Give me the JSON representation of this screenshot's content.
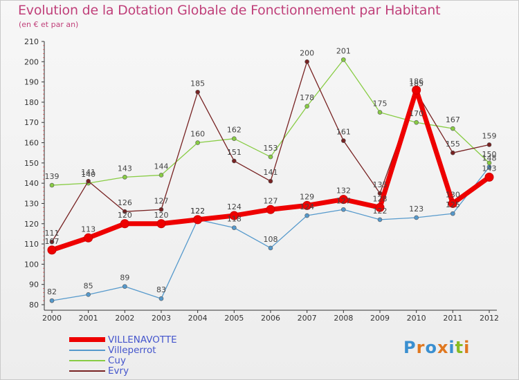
{
  "title": "Evolution de la Dotation Globale de Fonctionnement par Habitant",
  "subtitle": "(en € et par an)",
  "logo": "Proxiti",
  "chart_data": {
    "type": "line",
    "title": "Evolution de la Dotation Globale de Fonctionnement par Habitant",
    "subtitle": "(en € et par an)",
    "xlabel": "",
    "ylabel": "",
    "categories": [
      "2000",
      "2001",
      "2002",
      "2003",
      "2004",
      "2005",
      "2006",
      "2007",
      "2008",
      "2009",
      "2010",
      "2011",
      "2012"
    ],
    "ylim": [
      80,
      210
    ],
    "yticks": [
      80,
      90,
      100,
      110,
      120,
      130,
      140,
      150,
      160,
      170,
      180,
      190,
      200,
      210
    ],
    "grid": false,
    "legend_position": "bottom-left",
    "series": [
      {
        "name": "VILLENAVOTTE",
        "color": "#ee0000",
        "values": [
          107,
          113,
          120,
          120,
          122,
          124,
          127,
          129,
          132,
          128,
          186,
          130,
          143
        ]
      },
      {
        "name": "Villeperrot",
        "color": "#5599cc",
        "values": [
          82,
          85,
          89,
          83,
          122,
          118,
          108,
          124,
          127,
          122,
          123,
          125,
          148
        ]
      },
      {
        "name": "Cuy",
        "color": "#88cc44",
        "values": [
          139,
          140,
          143,
          144,
          160,
          162,
          153,
          178,
          201,
          175,
          170,
          167,
          150
        ]
      },
      {
        "name": "Evry",
        "color": "#772222",
        "values": [
          111,
          141,
          126,
          127,
          185,
          151,
          141,
          200,
          161,
          135,
          185,
          155,
          159
        ]
      }
    ]
  }
}
